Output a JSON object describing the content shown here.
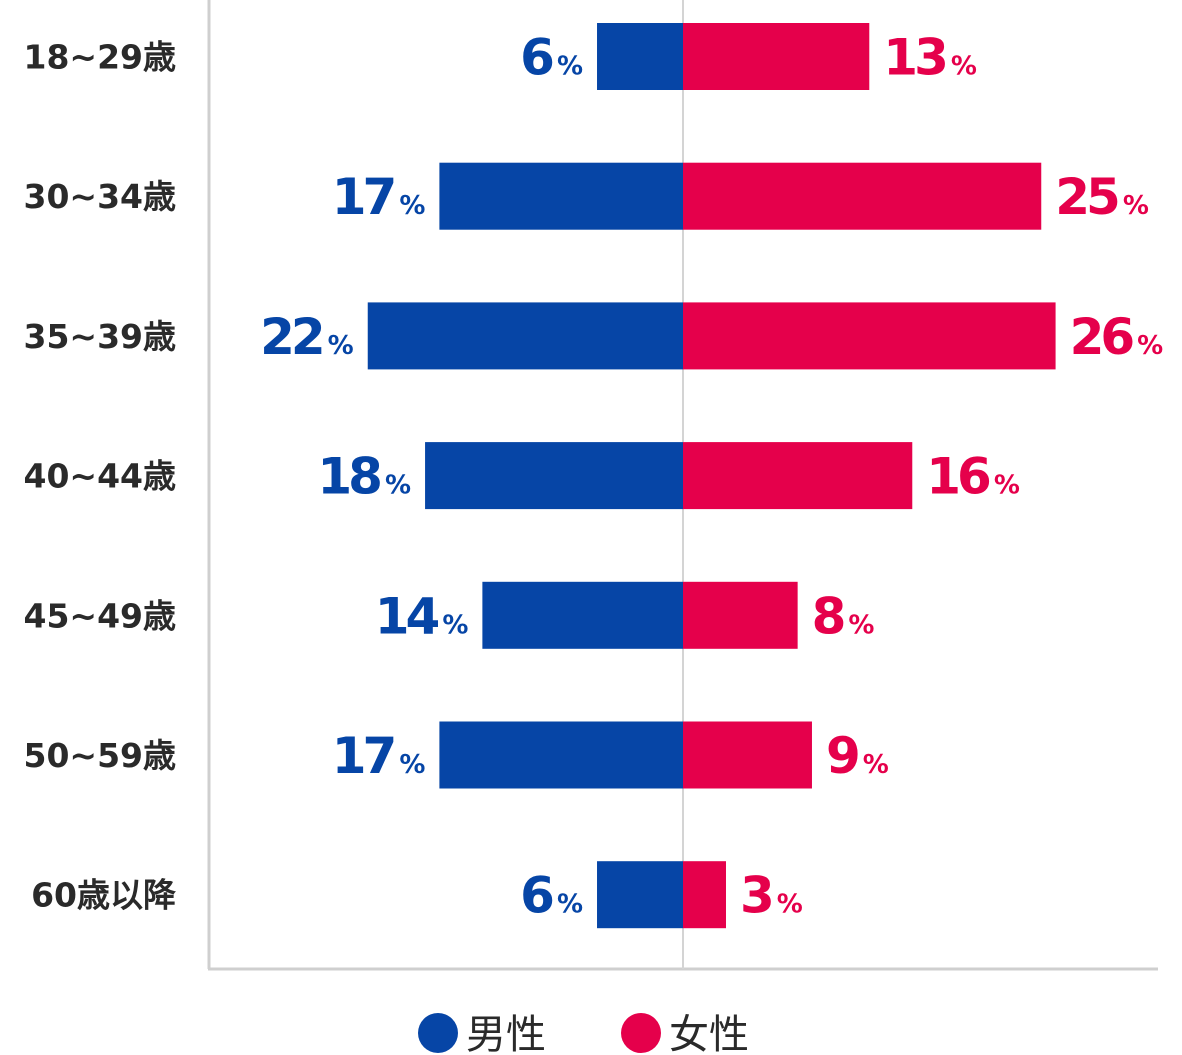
{
  "chart_data": {
    "type": "bar",
    "orientation": "horizontal-diverging",
    "categories": [
      "18~29歳",
      "30~34歳",
      "35~39歳",
      "40~44歳",
      "45~49歳",
      "50~59歳",
      "60歳以降"
    ],
    "series": [
      {
        "name": "男性",
        "color": "#0645a6",
        "side": "left",
        "values": [
          6,
          17,
          22,
          18,
          14,
          17,
          6
        ]
      },
      {
        "name": "女性",
        "color": "#e5004b",
        "side": "right",
        "values": [
          13,
          25,
          26,
          16,
          8,
          9,
          3
        ]
      }
    ],
    "unit": "%",
    "xlim": [
      0,
      26
    ],
    "grid": false,
    "legend_position": "bottom-center"
  }
}
